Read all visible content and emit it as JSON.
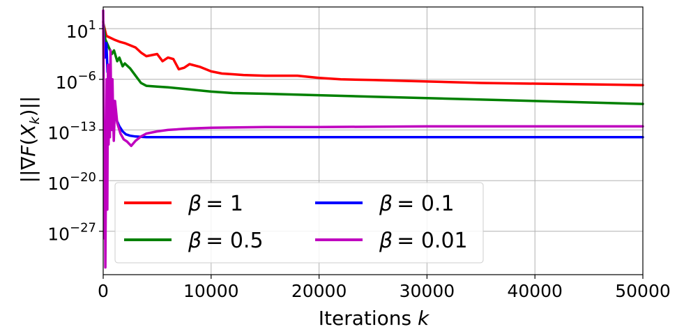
{
  "chart_data": {
    "type": "line",
    "title": "",
    "xlabel": "Iterations",
    "xlabel_var": "k",
    "ylabel": "||∇F(X_k)||",
    "ylabel_parts": {
      "pre": "||∇",
      "F": "F",
      "open": "(",
      "X": "X",
      "sub": "k",
      "close": ")||"
    },
    "xscale": "linear",
    "yscale": "log",
    "xlim": [
      0,
      50000
    ],
    "ylim_log10": [
      -33,
      4
    ],
    "x_ticks": [
      0,
      10000,
      20000,
      30000,
      40000,
      50000
    ],
    "x_tick_labels": [
      "0",
      "10000",
      "20000",
      "30000",
      "40000",
      "50000"
    ],
    "y_ticks_log10": [
      1,
      -6,
      -13,
      -20,
      -27
    ],
    "y_tick_labels": [
      {
        "base": "10",
        "exp": "1"
      },
      {
        "base": "10",
        "exp": "−6"
      },
      {
        "base": "10",
        "exp": "−13"
      },
      {
        "base": "10",
        "exp": "−20"
      },
      {
        "base": "10",
        "exp": "−27"
      }
    ],
    "grid": true,
    "legend_position": "lower-left",
    "legend_columns": 2,
    "series": [
      {
        "name": "β = 1",
        "label_symbol": "β",
        "label_value": "= 1",
        "color": "#ff0000",
        "x": [
          0,
          300,
          1000,
          1500,
          2000,
          2500,
          3000,
          3500,
          4000,
          5000,
          5500,
          6000,
          6500,
          7000,
          7500,
          8000,
          9000,
          10000,
          11000,
          12000,
          13000,
          15000,
          17000,
          18000,
          20000,
          22000,
          25000,
          30000,
          35000,
          40000,
          45000,
          50000
        ],
        "log10_y": [
          1.8,
          0.0,
          -0.5,
          -0.8,
          -1.0,
          -1.3,
          -1.6,
          -2.3,
          -2.8,
          -2.5,
          -3.5,
          -3.0,
          -3.2,
          -4.6,
          -4.4,
          -3.9,
          -4.3,
          -4.9,
          -5.2,
          -5.3,
          -5.4,
          -5.5,
          -5.5,
          -5.5,
          -5.8,
          -6.0,
          -6.1,
          -6.3,
          -6.5,
          -6.6,
          -6.7,
          -6.8
        ]
      },
      {
        "name": "β = 0.5",
        "label_symbol": "β",
        "label_value": "= 0.5",
        "color": "#008000",
        "x": [
          0,
          200,
          500,
          800,
          1000,
          1300,
          1500,
          1800,
          2000,
          2500,
          3000,
          3500,
          4000,
          5000,
          6000,
          8000,
          10000,
          12000,
          15000,
          20000,
          25000,
          30000,
          40000,
          50000
        ],
        "log10_y": [
          2.0,
          -0.5,
          -1.5,
          -2.5,
          -2.0,
          -3.5,
          -3.0,
          -4.2,
          -3.8,
          -4.5,
          -5.5,
          -6.5,
          -6.9,
          -7.0,
          -7.1,
          -7.4,
          -7.7,
          -7.9,
          -8.0,
          -8.2,
          -8.4,
          -8.6,
          -9.0,
          -9.4
        ]
      },
      {
        "name": "β = 0.1",
        "label_symbol": "β",
        "label_value": "= 0.1",
        "color": "#0000ff",
        "x": [
          0,
          150,
          300,
          400,
          500,
          600,
          700,
          800,
          900,
          1000,
          1200,
          1500,
          1800,
          2100,
          2500,
          3000,
          4000,
          6000,
          10000,
          20000,
          30000,
          40000,
          50000
        ],
        "log10_y": [
          1.5,
          -3.0,
          -1.0,
          -5.0,
          -4.0,
          -8.0,
          -10.5,
          -6.0,
          -12.0,
          -9.0,
          -11.5,
          -12.5,
          -13.2,
          -13.6,
          -13.8,
          -13.9,
          -14.0,
          -14.0,
          -14.0,
          -14.0,
          -14.0,
          -14.0,
          -14.0
        ]
      },
      {
        "name": "β = 0.01",
        "label_symbol": "β",
        "label_value": "= 0.01",
        "color": "#bf00bf",
        "x": [
          0,
          60,
          120,
          160,
          200,
          260,
          320,
          380,
          440,
          500,
          560,
          620,
          680,
          740,
          800,
          860,
          920,
          980,
          1100,
          1300,
          1600,
          1900,
          2200,
          2600,
          3000,
          3500,
          4000,
          5000,
          6000,
          8000,
          10000,
          15000,
          20000,
          30000,
          40000,
          50000
        ],
        "log10_y": [
          3.5,
          -10.0,
          -28.0,
          -12.0,
          -32.0,
          -18.0,
          -6.0,
          -24.0,
          -4.0,
          -15.0,
          -8.0,
          -14.0,
          -2.0,
          -10.0,
          -13.0,
          -6.0,
          -11.0,
          -14.5,
          -9.0,
          -12.0,
          -13.5,
          -14.3,
          -14.6,
          -15.2,
          -14.5,
          -13.9,
          -13.5,
          -13.2,
          -13.0,
          -12.8,
          -12.7,
          -12.6,
          -12.6,
          -12.5,
          -12.5,
          -12.5
        ]
      }
    ]
  }
}
